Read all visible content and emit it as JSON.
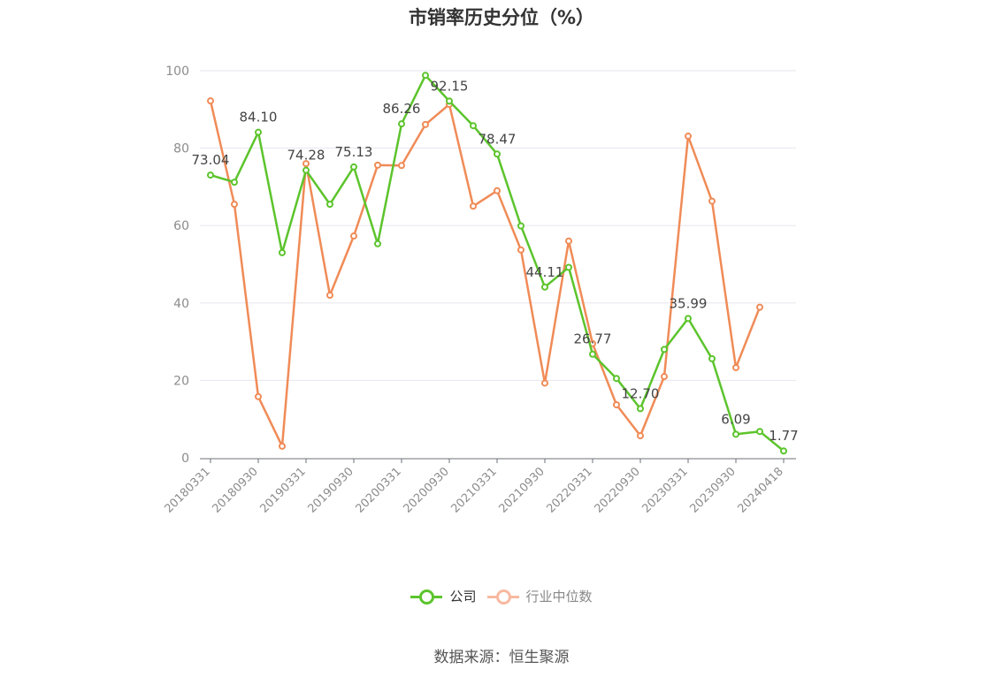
{
  "chart_data": {
    "type": "line",
    "title": "市销率历史分位（%）",
    "xlabel": "",
    "ylabel": "",
    "ylim": [
      0,
      100
    ],
    "yticks": [
      0,
      20,
      40,
      60,
      80,
      100
    ],
    "grid": true,
    "legend_position": "bottom",
    "x_tick_labels": [
      "20180331",
      "20180930",
      "20190331",
      "20190930",
      "20200331",
      "20200930",
      "20210331",
      "20210930",
      "20220331",
      "20220930",
      "20230331",
      "20230930",
      "20240418"
    ],
    "x": [
      "20180331",
      "20180630",
      "20180930",
      "20181231",
      "20190331",
      "20190630",
      "20190930",
      "20191231",
      "20200331",
      "20200630",
      "20200930",
      "20201231",
      "20210331",
      "20210630",
      "20210930",
      "20211231",
      "20220331",
      "20220630",
      "20220930",
      "20221231",
      "20230331",
      "20230630",
      "20230930",
      "20231231",
      "20240418"
    ],
    "series": [
      {
        "name": "公司",
        "color": "#5cc42c",
        "values": [
          73.04,
          71.2,
          84.1,
          53.0,
          74.28,
          65.5,
          75.13,
          55.3,
          86.26,
          98.8,
          92.15,
          85.8,
          78.47,
          59.9,
          44.11,
          49.2,
          26.77,
          20.5,
          12.7,
          28.0,
          35.99,
          25.6,
          6.09,
          6.8,
          1.77
        ],
        "labels": {
          "0": "73.04",
          "2": "84.10",
          "4": "74.28",
          "6": "75.13",
          "8": "86.26",
          "10": "92.15",
          "12": "78.47",
          "14": "44.11",
          "16": "26.77",
          "18": "12.70",
          "20": "35.99",
          "22": "6.09",
          "24": "1.77"
        }
      },
      {
        "name": "行业中位数",
        "color": "#f08b57",
        "values": [
          92.2,
          65.5,
          15.8,
          3.0,
          76.0,
          42.0,
          57.3,
          75.6,
          75.5,
          86.1,
          91.3,
          65.0,
          69.0,
          53.7,
          19.3,
          56.0,
          29.5,
          13.7,
          5.7,
          21.0,
          83.1,
          66.3,
          23.3,
          38.9,
          null
        ]
      }
    ]
  },
  "legend": [
    {
      "label": "公司",
      "color": "#5cc42c"
    },
    {
      "label": "行业中位数",
      "color": "#f7b9a0"
    }
  ],
  "source": "数据来源：恒生聚源"
}
